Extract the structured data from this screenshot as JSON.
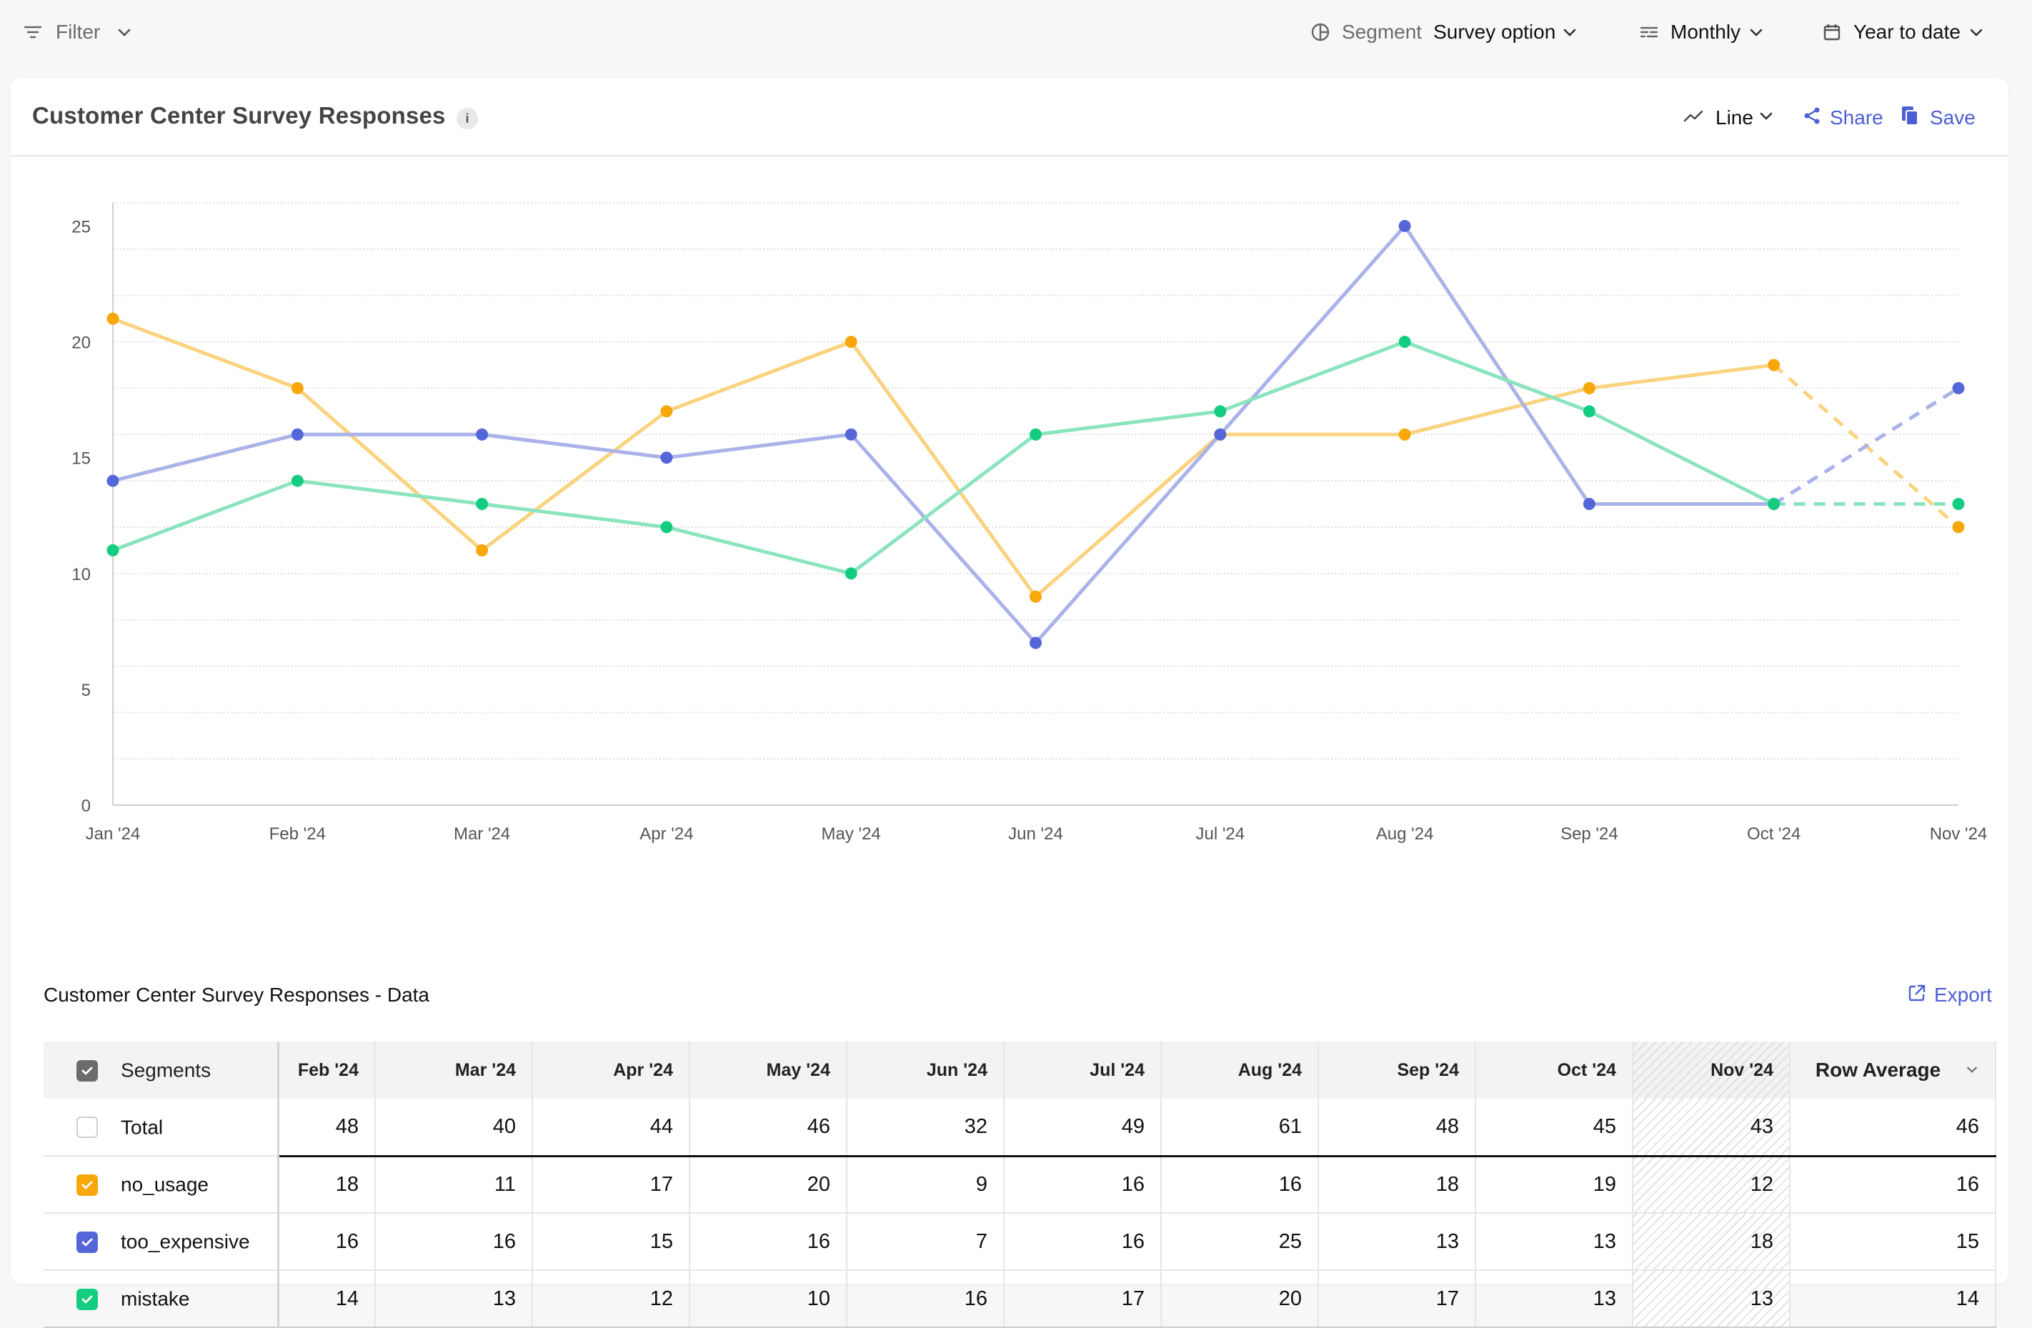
{
  "filter": {
    "label": "Filter"
  },
  "segment": {
    "label": "Segment",
    "value": "Survey option"
  },
  "interval": {
    "value": "Monthly"
  },
  "date_range": {
    "value": "Year to date"
  },
  "header": {
    "title": "Customer Center Survey Responses",
    "info": "i",
    "chart_type": "Line",
    "share": "Share",
    "save": "Save"
  },
  "chart_data": {
    "type": "line",
    "title": "",
    "xlabel": "",
    "ylabel": "",
    "categories": [
      "Jan '24",
      "Feb '24",
      "Mar '24",
      "Apr '24",
      "May '24",
      "Jun '24",
      "Jul '24",
      "Aug '24",
      "Sep '24",
      "Oct '24",
      "Nov '24"
    ],
    "y_ticks": [
      0,
      5,
      10,
      15,
      20,
      25
    ],
    "ylim": [
      0,
      26
    ],
    "grid": true,
    "partial_from_index": 9,
    "series": [
      {
        "key": "no_usage",
        "values": [
          21,
          18,
          11,
          17,
          20,
          9,
          16,
          16,
          18,
          19,
          12
        ],
        "color": "#f8a70a",
        "line_color": "#fbd27e"
      },
      {
        "key": "too_expensive",
        "values": [
          14,
          16,
          16,
          15,
          16,
          7,
          16,
          25,
          13,
          13,
          18
        ],
        "color": "#5566d8",
        "line_color": "#aab2ea"
      },
      {
        "key": "mistake",
        "values": [
          11,
          14,
          13,
          12,
          10,
          16,
          17,
          20,
          17,
          13,
          13
        ],
        "color": "#15cd80",
        "line_color": "#8ae4bd"
      }
    ]
  },
  "table": {
    "title": "Customer Center Survey Responses - Data",
    "export": "Export",
    "segments_header": "Segments",
    "columns": [
      "Feb '24",
      "Mar '24",
      "Apr '24",
      "May '24",
      "Jun '24",
      "Jul '24",
      "Aug '24",
      "Sep '24",
      "Oct '24",
      "Nov '24"
    ],
    "row_average_header": "Row Average",
    "rows": [
      {
        "name": "Total",
        "values": [
          "48",
          "40",
          "44",
          "46",
          "32",
          "49",
          "61",
          "48",
          "45",
          "43"
        ],
        "avg": "46",
        "checked": false,
        "color": ""
      },
      {
        "name": "no_usage",
        "values": [
          "18",
          "11",
          "17",
          "20",
          "9",
          "16",
          "16",
          "18",
          "19",
          "12"
        ],
        "avg": "16",
        "checked": true,
        "color": "#f8a70a"
      },
      {
        "name": "too_expensive",
        "values": [
          "16",
          "16",
          "15",
          "16",
          "7",
          "16",
          "25",
          "13",
          "13",
          "18"
        ],
        "avg": "15",
        "checked": true,
        "color": "#5566d8"
      },
      {
        "name": "mistake",
        "values": [
          "14",
          "13",
          "12",
          "10",
          "16",
          "17",
          "20",
          "17",
          "13",
          "13"
        ],
        "avg": "14",
        "checked": true,
        "color": "#15cd80"
      }
    ]
  }
}
